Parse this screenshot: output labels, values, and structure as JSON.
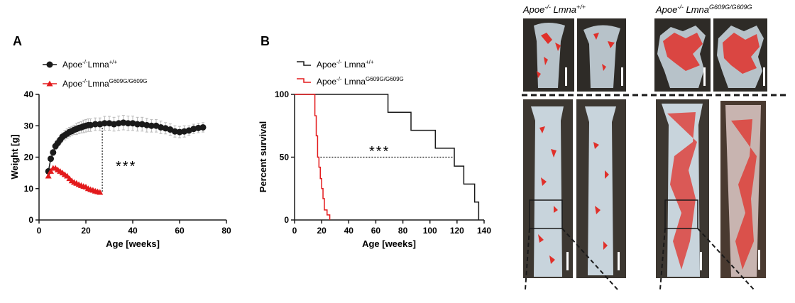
{
  "panelA": {
    "letter": "A",
    "legend": [
      {
        "base": "Apoe",
        "sup1": "-/-",
        "mid": "Lmna",
        "sup2": "+/+"
      },
      {
        "base": "Apoe",
        "sup1": "-/-",
        "mid": "Lmna",
        "sup2": "G609G/G609G"
      }
    ],
    "significance": "***"
  },
  "panelB": {
    "letter": "B",
    "legend": [
      {
        "base": "Apoe",
        "sup1": "-/-",
        "mid": " Lmna",
        "sup2": "+/+"
      },
      {
        "base": "Apoe",
        "sup1": "-/-",
        "mid": " Lmna",
        "sup2": "G609G/G609G"
      }
    ],
    "significance": "***"
  },
  "chart_data": [
    {
      "type": "scatter",
      "title": "",
      "xlabel": "Age [weeks]",
      "ylabel": "Weight [g]",
      "xlim": [
        0,
        80
      ],
      "ylim": [
        0,
        40
      ],
      "xticks": [
        0,
        20,
        40,
        60,
        80
      ],
      "yticks": [
        0,
        10,
        20,
        30,
        40
      ],
      "series": [
        {
          "name": "Apoe-/-Lmna+/+",
          "color": "#1a1a1a",
          "marker": "circle",
          "x": [
            4,
            5,
            6,
            7,
            8,
            9,
            10,
            11,
            12,
            13,
            14,
            15,
            16,
            17,
            18,
            19,
            20,
            21,
            22,
            24,
            26,
            28,
            30,
            32,
            34,
            36,
            38,
            40,
            42,
            44,
            46,
            48,
            50,
            52,
            54,
            56,
            58,
            60,
            62,
            64,
            66,
            68,
            70
          ],
          "y": [
            15.5,
            19.5,
            21.5,
            23.5,
            24.5,
            25.5,
            26.5,
            27,
            27.5,
            28,
            28.3,
            28.7,
            29,
            29.3,
            29.5,
            29.8,
            30,
            30.2,
            30.2,
            30.5,
            30.5,
            30.8,
            30.8,
            30.5,
            30.8,
            31,
            30.8,
            30.8,
            30.5,
            30.5,
            30.2,
            30,
            30,
            29.5,
            29.2,
            28.8,
            28.2,
            28,
            28.2,
            28.5,
            29,
            29.3,
            29.5
          ],
          "err": [
            0.5,
            0.8,
            1,
            1,
            1.2,
            1.2,
            1.2,
            1.5,
            1.5,
            1.5,
            1.5,
            1.5,
            1.8,
            1.8,
            1.8,
            2,
            2,
            2,
            2,
            2,
            2,
            2.2,
            2.2,
            2.2,
            2.3,
            2.3,
            2.3,
            2.3,
            2.2,
            2.2,
            2.2,
            2,
            2,
            2,
            1.8,
            1.8,
            1.8,
            1.8,
            1.8,
            1.5,
            1.5,
            1.5,
            1.5
          ]
        },
        {
          "name": "Apoe-/-LmnaG609G/G609G",
          "color": "#e31a1c",
          "marker": "triangle",
          "x": [
            4,
            5,
            6,
            7,
            8,
            9,
            10,
            11,
            12,
            13,
            14,
            15,
            16,
            17,
            18,
            19,
            20,
            21,
            22,
            23,
            24,
            25,
            26
          ],
          "y": [
            14,
            15.5,
            16.5,
            16.5,
            16,
            15.5,
            15,
            14.5,
            14,
            13.2,
            12.5,
            12,
            11.7,
            11.3,
            11,
            10.7,
            10.5,
            10,
            9.7,
            9.5,
            9.2,
            9,
            8.8
          ]
        }
      ],
      "annotation": {
        "text": "***",
        "x": 27,
        "y_from": 9,
        "y_to": 30.5
      }
    },
    {
      "type": "line",
      "title": "",
      "xlabel": "Age [weeks]",
      "ylabel": "Percent survival",
      "xlim": [
        0,
        140
      ],
      "ylim": [
        0,
        100
      ],
      "xticks": [
        0,
        20,
        40,
        60,
        80,
        100,
        120,
        140
      ],
      "yticks": [
        0,
        50,
        100
      ],
      "series": [
        {
          "name": "Apoe-/- Lmna+/+",
          "color": "#1a1a1a",
          "steps": [
            [
              0,
              100
            ],
            [
              69,
              100
            ],
            [
              69,
              85.7
            ],
            [
              86,
              85.7
            ],
            [
              86,
              71.4
            ],
            [
              104,
              71.4
            ],
            [
              104,
              57.1
            ],
            [
              118,
              57.1
            ],
            [
              118,
              42.9
            ],
            [
              125,
              42.9
            ],
            [
              125,
              28.6
            ],
            [
              133,
              28.6
            ],
            [
              133,
              14.3
            ],
            [
              136,
              14.3
            ],
            [
              136,
              0
            ]
          ]
        },
        {
          "name": "Apoe-/- LmnaG609G/G609G",
          "color": "#e31a1c",
          "steps": [
            [
              0,
              100
            ],
            [
              15,
              100
            ],
            [
              15,
              83
            ],
            [
              16,
              83
            ],
            [
              16,
              67
            ],
            [
              17,
              67
            ],
            [
              17,
              50
            ],
            [
              18,
              50
            ],
            [
              18,
              42
            ],
            [
              19,
              42
            ],
            [
              19,
              33
            ],
            [
              20,
              33
            ],
            [
              20,
              25
            ],
            [
              21,
              25
            ],
            [
              21,
              17
            ],
            [
              22,
              17
            ],
            [
              22,
              8
            ],
            [
              24,
              8
            ],
            [
              24,
              4
            ],
            [
              26,
              4
            ],
            [
              26,
              0
            ]
          ]
        }
      ],
      "annotation": {
        "text": "***",
        "y": 50,
        "x_from": 17,
        "x_to": 118
      }
    }
  ],
  "photos": {
    "header_left": {
      "base": "Apoe",
      "sup1": "-/-",
      "mid": " Lmna",
      "sup2": "+/+"
    },
    "header_right": {
      "base": "Apoe",
      "sup1": "-/-",
      "mid": " Lmna",
      "sup2": "G609G/G609G"
    },
    "tissue_color": "#c8d4dc",
    "lesion_color": "#e0302a",
    "dark_bg": "#3a3630"
  }
}
